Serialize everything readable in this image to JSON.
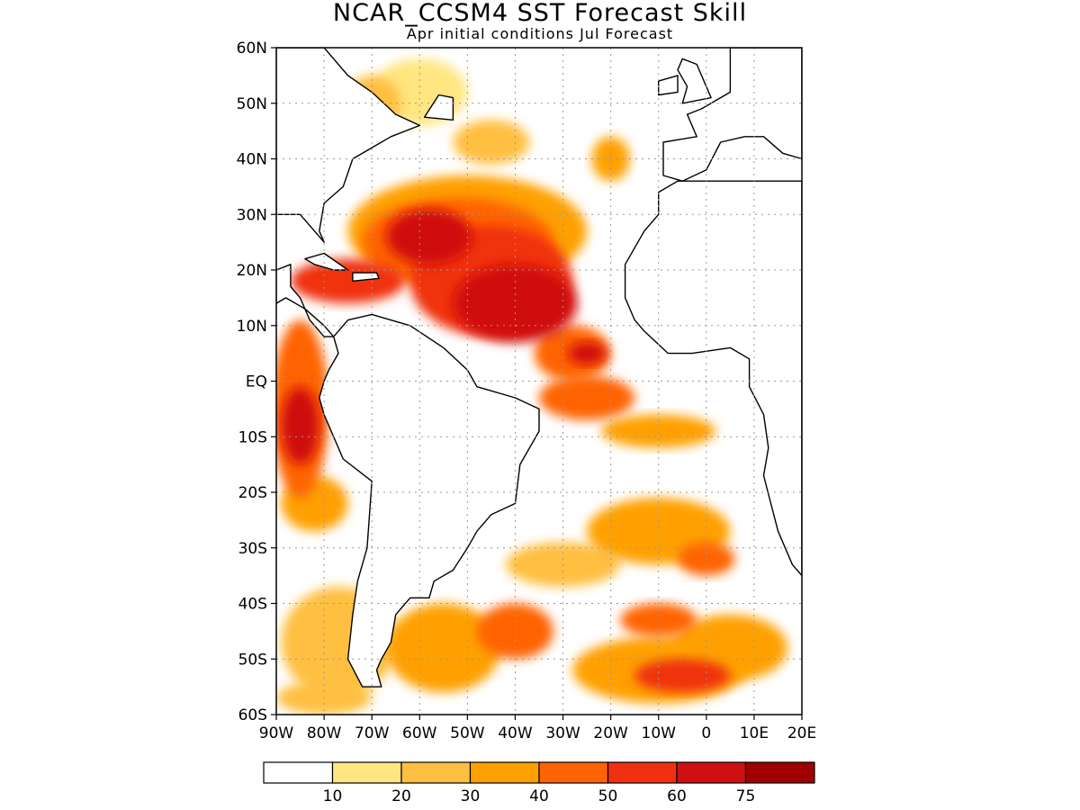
{
  "title": "NCAR_CCSM4 SST Forecast Skill",
  "subtitle": "Apr initial conditions  Jul Forecast",
  "map": {
    "lon_range": [
      -90,
      20
    ],
    "lat_range": [
      -60,
      60
    ],
    "grid": true,
    "lat_labels": [
      "60N",
      "50N",
      "40N",
      "30N",
      "20N",
      "10N",
      "EQ",
      "10S",
      "20S",
      "30S",
      "40S",
      "50S",
      "60S"
    ],
    "lon_labels": [
      "90W",
      "80W",
      "70W",
      "60W",
      "50W",
      "40W",
      "30W",
      "20W",
      "10W",
      "0",
      "10E",
      "20E"
    ]
  },
  "colorbar": {
    "colors": [
      "#ffffff",
      "#ffe680",
      "#ffbf40",
      "#ffa000",
      "#ff6400",
      "#f03010",
      "#d01010",
      "#a00000"
    ],
    "labels": [
      "10",
      "20",
      "30",
      "40",
      "50",
      "60",
      "75"
    ]
  },
  "skill_regions": [
    {
      "lon": -70,
      "lat": 50,
      "rx": 6,
      "ry": 5,
      "level": 2
    },
    {
      "lon": -60,
      "lat": 52,
      "rx": 10,
      "ry": 6,
      "level": 1
    },
    {
      "lon": -45,
      "lat": 43,
      "rx": 8,
      "ry": 4,
      "level": 2
    },
    {
      "lon": -50,
      "lat": 27,
      "rx": 25,
      "ry": 10,
      "level": 3
    },
    {
      "lon": -52,
      "lat": 25,
      "rx": 20,
      "ry": 8,
      "level": 4
    },
    {
      "lon": -58,
      "lat": 26,
      "rx": 9,
      "ry": 5,
      "level": 6
    },
    {
      "lon": -45,
      "lat": 18,
      "rx": 17,
      "ry": 10,
      "level": 5
    },
    {
      "lon": -40,
      "lat": 14,
      "rx": 13,
      "ry": 7,
      "level": 6
    },
    {
      "lon": -75,
      "lat": 18,
      "rx": 12,
      "ry": 4,
      "level": 5
    },
    {
      "lon": -20,
      "lat": 40,
      "rx": 4,
      "ry": 4,
      "level": 3
    },
    {
      "lon": -28,
      "lat": 5,
      "rx": 8,
      "ry": 5,
      "level": 4
    },
    {
      "lon": -25,
      "lat": 5,
      "rx": 4,
      "ry": 2,
      "level": 6
    },
    {
      "lon": -25,
      "lat": -3,
      "rx": 10,
      "ry": 4,
      "level": 4
    },
    {
      "lon": -10,
      "lat": -9,
      "rx": 12,
      "ry": 3,
      "level": 3
    },
    {
      "lon": -85,
      "lat": -5,
      "rx": 6,
      "ry": 16,
      "level": 4
    },
    {
      "lon": -85,
      "lat": -8,
      "rx": 4,
      "ry": 7,
      "level": 6
    },
    {
      "lon": -82,
      "lat": -22,
      "rx": 7,
      "ry": 5,
      "level": 3
    },
    {
      "lon": -77,
      "lat": -47,
      "rx": 12,
      "ry": 10,
      "level": 2
    },
    {
      "lon": -55,
      "lat": -48,
      "rx": 12,
      "ry": 8,
      "level": 3
    },
    {
      "lon": -40,
      "lat": -45,
      "rx": 8,
      "ry": 5,
      "level": 4
    },
    {
      "lon": -30,
      "lat": -33,
      "rx": 12,
      "ry": 4,
      "level": 2
    },
    {
      "lon": -10,
      "lat": -27,
      "rx": 15,
      "ry": 6,
      "level": 3
    },
    {
      "lon": 0,
      "lat": -32,
      "rx": 6,
      "ry": 3,
      "level": 4
    },
    {
      "lon": -10,
      "lat": -52,
      "rx": 18,
      "ry": 6,
      "level": 3
    },
    {
      "lon": -5,
      "lat": -53,
      "rx": 10,
      "ry": 3,
      "level": 5
    },
    {
      "lon": 5,
      "lat": -48,
      "rx": 12,
      "ry": 6,
      "level": 3
    },
    {
      "lon": -10,
      "lat": -43,
      "rx": 8,
      "ry": 3,
      "level": 4
    },
    {
      "lon": -80,
      "lat": -57,
      "rx": 10,
      "ry": 3,
      "level": 2
    }
  ],
  "land": [
    {
      "name": "north-america",
      "points": [
        [
          -90,
          60
        ],
        [
          -80,
          60
        ],
        [
          -75,
          55
        ],
        [
          -70,
          52
        ],
        [
          -65,
          48
        ],
        [
          -60,
          46
        ],
        [
          -66,
          44
        ],
        [
          -70,
          42
        ],
        [
          -74,
          40
        ],
        [
          -76,
          35
        ],
        [
          -80,
          32
        ],
        [
          -81,
          27
        ],
        [
          -80,
          25
        ],
        [
          -82,
          27
        ],
        [
          -85,
          30
        ],
        [
          -90,
          30
        ]
      ]
    },
    {
      "name": "central-america",
      "points": [
        [
          -90,
          20
        ],
        [
          -87,
          21
        ],
        [
          -87,
          17
        ],
        [
          -85,
          15
        ],
        [
          -83,
          11
        ],
        [
          -80,
          8
        ],
        [
          -78,
          8
        ],
        [
          -80,
          10
        ],
        [
          -84,
          13
        ],
        [
          -88,
          15
        ],
        [
          -90,
          14
        ]
      ]
    },
    {
      "name": "cuba",
      "points": [
        [
          -84,
          22
        ],
        [
          -80,
          23
        ],
        [
          -75,
          20
        ],
        [
          -78,
          20
        ],
        [
          -82,
          21
        ]
      ]
    },
    {
      "name": "hispaniola",
      "points": [
        [
          -74,
          19.5
        ],
        [
          -69,
          19.5
        ],
        [
          -68.5,
          18.5
        ],
        [
          -74,
          18
        ]
      ]
    },
    {
      "name": "south-america",
      "points": [
        [
          -78,
          8
        ],
        [
          -75,
          11
        ],
        [
          -70,
          12
        ],
        [
          -62,
          10
        ],
        [
          -55,
          6
        ],
        [
          -50,
          2
        ],
        [
          -48,
          -1
        ],
        [
          -40,
          -3
        ],
        [
          -35,
          -5
        ],
        [
          -35,
          -9
        ],
        [
          -39,
          -15
        ],
        [
          -40,
          -22
        ],
        [
          -45,
          -24
        ],
        [
          -48,
          -27
        ],
        [
          -50,
          -30
        ],
        [
          -53,
          -34
        ],
        [
          -57,
          -36
        ],
        [
          -58,
          -39
        ],
        [
          -62,
          -39
        ],
        [
          -65,
          -42
        ],
        [
          -66,
          -47
        ],
        [
          -68,
          -50
        ],
        [
          -69,
          -52
        ],
        [
          -68,
          -55
        ],
        [
          -72,
          -55
        ],
        [
          -75,
          -50
        ],
        [
          -74,
          -42
        ],
        [
          -73,
          -36
        ],
        [
          -71,
          -30
        ],
        [
          -70,
          -18
        ],
        [
          -76,
          -14
        ],
        [
          -80,
          -6
        ],
        [
          -81,
          -3
        ],
        [
          -80,
          0
        ],
        [
          -79,
          2
        ],
        [
          -77,
          5
        ]
      ]
    },
    {
      "name": "africa",
      "points": [
        [
          -6,
          36
        ],
        [
          -10,
          34
        ],
        [
          -10,
          30
        ],
        [
          -13,
          27
        ],
        [
          -17,
          21
        ],
        [
          -17,
          15
        ],
        [
          -15,
          11
        ],
        [
          -13,
          9
        ],
        [
          -8,
          5
        ],
        [
          -3,
          5
        ],
        [
          5,
          6
        ],
        [
          9,
          4
        ],
        [
          9,
          -1
        ],
        [
          12,
          -6
        ],
        [
          13,
          -12
        ],
        [
          12,
          -17
        ],
        [
          15,
          -27
        ],
        [
          18,
          -33
        ],
        [
          20,
          -35
        ],
        [
          20,
          36
        ]
      ]
    },
    {
      "name": "europe",
      "points": [
        [
          -9,
          43
        ],
        [
          -9,
          37
        ],
        [
          -5,
          36
        ],
        [
          0,
          38
        ],
        [
          3,
          43
        ],
        [
          8,
          44
        ],
        [
          12,
          44
        ],
        [
          16,
          41
        ],
        [
          20,
          40
        ],
        [
          20,
          60
        ],
        [
          5,
          60
        ],
        [
          5,
          52
        ],
        [
          -1,
          49
        ],
        [
          -4,
          48
        ],
        [
          -2,
          44
        ]
      ]
    },
    {
      "name": "great-britain",
      "points": [
        [
          -5,
          58
        ],
        [
          -2,
          57
        ],
        [
          0,
          53
        ],
        [
          1,
          51
        ],
        [
          -5,
          50
        ],
        [
          -4,
          53
        ],
        [
          -6,
          56
        ]
      ]
    },
    {
      "name": "ireland",
      "points": [
        [
          -10,
          54
        ],
        [
          -6,
          55
        ],
        [
          -6,
          52
        ],
        [
          -10,
          51.5
        ]
      ]
    },
    {
      "name": "newfoundland",
      "points": [
        [
          -59,
          47.5
        ],
        [
          -53,
          47
        ],
        [
          -53,
          51
        ],
        [
          -56,
          51.5
        ]
      ]
    }
  ]
}
